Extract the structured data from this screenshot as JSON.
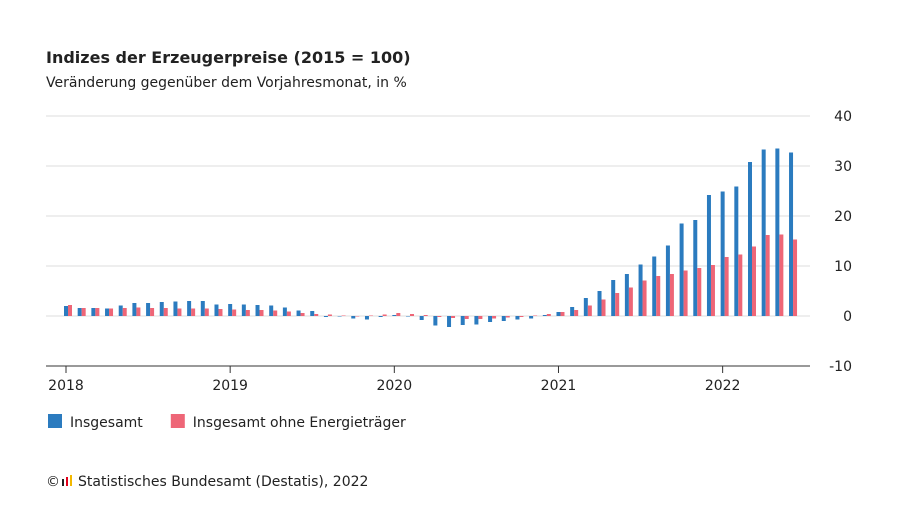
{
  "chart_data": {
    "type": "bar",
    "title": "Indizes der Erzeugerpreise (2015 = 100)",
    "subtitle": "Veränderung gegenüber dem Vorjahresmonat, in %",
    "categories": [
      "2018",
      null,
      null,
      null,
      null,
      null,
      null,
      null,
      null,
      null,
      null,
      null,
      "2019",
      null,
      null,
      null,
      null,
      null,
      null,
      null,
      null,
      null,
      null,
      null,
      "2020",
      null,
      null,
      null,
      null,
      null,
      null,
      null,
      null,
      null,
      null,
      null,
      "2021",
      null,
      null,
      null,
      null,
      null,
      null,
      null,
      null,
      null,
      null,
      null,
      "2022",
      null,
      null,
      null,
      null,
      null
    ],
    "series": [
      {
        "name": "Insgesamt",
        "color": "#2b7bbf",
        "values": [
          2.0,
          1.6,
          1.6,
          1.5,
          2.1,
          2.6,
          2.6,
          2.8,
          2.9,
          3.0,
          3.0,
          2.3,
          2.4,
          2.3,
          2.2,
          2.1,
          1.7,
          1.1,
          1.0,
          -0.2,
          -0.1,
          -0.5,
          -0.7,
          -0.2,
          0.2,
          -0.1,
          -0.8,
          -1.9,
          -2.2,
          -1.8,
          -1.7,
          -1.2,
          -1.0,
          -0.7,
          -0.5,
          0.2,
          0.8,
          1.8,
          3.6,
          5.0,
          7.2,
          8.4,
          10.3,
          11.9,
          14.1,
          18.5,
          19.2,
          24.2,
          24.9,
          25.9,
          30.8,
          33.3,
          33.5,
          32.7
        ]
      },
      {
        "name": "Insgesamt ohne Energieträger",
        "color": "#ee6677",
        "values": [
          2.2,
          1.6,
          1.6,
          1.5,
          1.6,
          1.7,
          1.6,
          1.6,
          1.5,
          1.5,
          1.5,
          1.4,
          1.3,
          1.2,
          1.2,
          1.1,
          0.9,
          0.6,
          0.4,
          0.3,
          0.1,
          -0.1,
          0.1,
          0.3,
          0.6,
          0.4,
          0.2,
          -0.2,
          -0.4,
          -0.6,
          -0.6,
          -0.5,
          -0.3,
          -0.2,
          0.1,
          0.4,
          0.8,
          1.2,
          2.1,
          3.3,
          4.6,
          5.7,
          7.1,
          8.0,
          8.4,
          9.1,
          9.6,
          10.2,
          11.8,
          12.3,
          13.9,
          16.2,
          16.3,
          15.3
        ]
      }
    ],
    "ylim": [
      -10,
      40
    ],
    "yticks": [
      -10,
      0,
      10,
      20,
      30,
      40
    ],
    "grid": true,
    "copyright": "©",
    "source": "Statistisches Bundesamt (Destatis), 2022"
  }
}
